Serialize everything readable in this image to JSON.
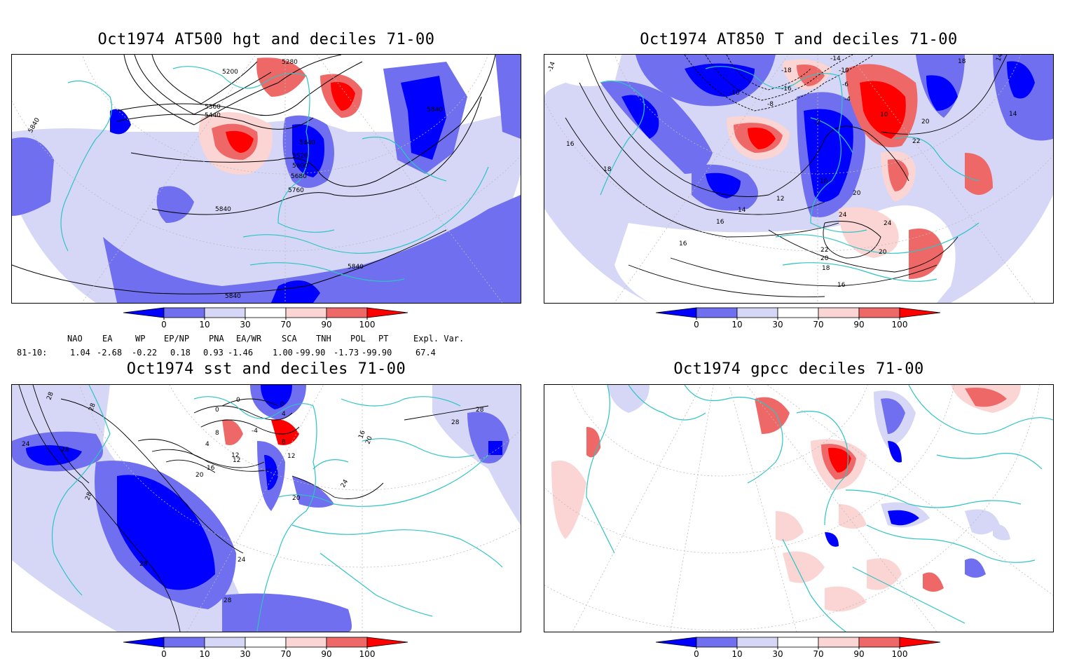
{
  "panels": [
    {
      "title": "Oct1974 AT500 hgt and deciles 71-00",
      "contour_labels": [
        "5280",
        "5200",
        "5360",
        "5440",
        "5440",
        "5520",
        "5600",
        "5680",
        "5760",
        "5840",
        "5840",
        "5840",
        "5840",
        "5840"
      ]
    },
    {
      "title": "Oct1974 AT850 T and deciles 71-00",
      "contour_labels": [
        "-14",
        "-10",
        "-6",
        "-4",
        "-18",
        "-16",
        "-10",
        "-8",
        "-2",
        "10",
        "18",
        "14",
        "16",
        "18",
        "22",
        "20",
        "20",
        "10",
        "12",
        "14",
        "16",
        "24",
        "24",
        "22",
        "20",
        "20",
        "18",
        "16",
        "16",
        "-14",
        "14"
      ]
    },
    {
      "title": "Oct1974 sst and deciles 71-00",
      "contour_labels": [
        "28",
        "28",
        "24",
        "28",
        "28",
        "0",
        "0",
        "0",
        "4",
        "8",
        "4",
        "-4",
        "8",
        "12",
        "16",
        "12",
        "20",
        "20",
        "24",
        "28",
        "28",
        "28",
        "24",
        "28",
        "16",
        "20",
        "12"
      ]
    },
    {
      "title": "Oct1974 gpcc deciles 71-00",
      "contour_labels": []
    }
  ],
  "colorbar": {
    "ticks": [
      "0",
      "10",
      "30",
      "70",
      "90",
      "100"
    ],
    "colors": [
      "#0000ff",
      "#6f6fef",
      "#d6d6f6",
      "#ffffff",
      "#fbd4d4",
      "#ef6868",
      "#ff0000"
    ]
  },
  "indices": {
    "headers": [
      "NAO",
      "EA",
      "WP",
      "EP/NP",
      "PNA",
      "EA/WR",
      "SCA",
      "TNH",
      "POL",
      "PT",
      "Expl. Var."
    ],
    "row_label": "81-10:",
    "values": [
      "1.04",
      "-2.68",
      "-0.22",
      "0.18",
      "0.93",
      "-1.46",
      "1.00",
      "-99.90",
      "-1.73",
      "-99.90",
      "67.4"
    ]
  }
}
